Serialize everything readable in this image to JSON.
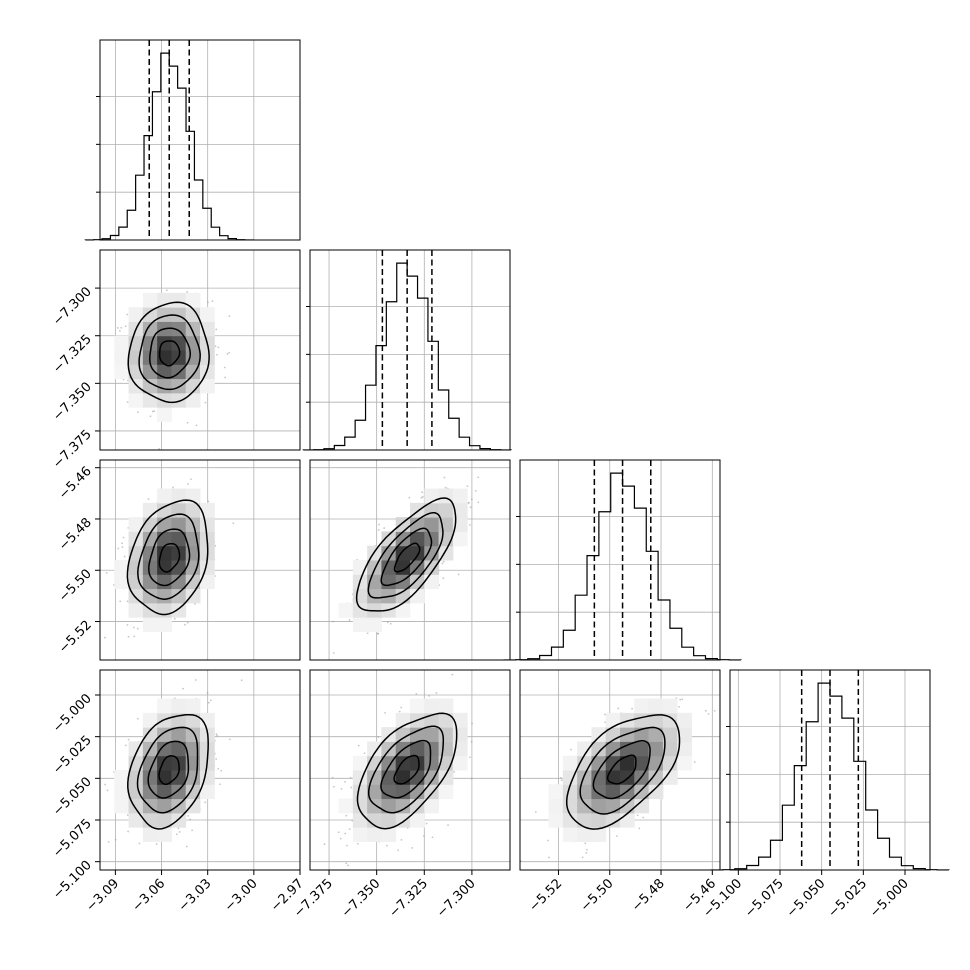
{
  "chart_data": {
    "type": "corner",
    "grid": true,
    "quantiles": [
      0.16,
      0.5,
      0.84
    ],
    "parameters": [
      {
        "mean": -3.055,
        "sd": 0.013,
        "range": [
          -3.1,
          -2.97
        ],
        "ticks": [
          -3.09,
          -3.06,
          -3.03,
          -3.0,
          -2.97
        ],
        "tick_labels": [
          "−3.09",
          "−3.06",
          "−3.03",
          "−3.00",
          "−2.97"
        ],
        "quantile_values": [
          -3.068,
          -3.055,
          -3.042
        ]
      },
      {
        "mean": -7.334,
        "sd": 0.013,
        "range": [
          -7.385,
          -7.28
        ],
        "ticks": [
          -7.375,
          -7.35,
          -7.325,
          -7.3
        ],
        "tick_labels": [
          "−7.375",
          "−7.350",
          "−7.325",
          "−7.300"
        ],
        "quantile_values": [
          -7.347,
          -7.334,
          -7.321
        ]
      },
      {
        "mean": -5.495,
        "sd": 0.011,
        "range": [
          -5.535,
          -5.457
        ],
        "ticks": [
          -5.52,
          -5.5,
          -5.48,
          -5.46
        ],
        "tick_labels": [
          "−5.52",
          "−5.50",
          "−5.48",
          "−5.46"
        ],
        "quantile_values": [
          -5.506,
          -5.495,
          -5.484
        ]
      },
      {
        "mean": -5.045,
        "sd": 0.017,
        "range": [
          -5.105,
          -4.985
        ],
        "ticks": [
          -5.1,
          -5.075,
          -5.05,
          -5.025,
          -5.0
        ],
        "tick_labels": [
          "−5.100",
          "−5.075",
          "−5.050",
          "−5.025",
          "−5.000"
        ],
        "quantile_values": [
          -5.062,
          -5.045,
          -5.028
        ]
      }
    ],
    "correlations": {
      "1-0": 0.05,
      "2-0": 0.25,
      "2-1": 0.7,
      "3-0": 0.3,
      "3-1": 0.55,
      "3-2": 0.55
    }
  }
}
